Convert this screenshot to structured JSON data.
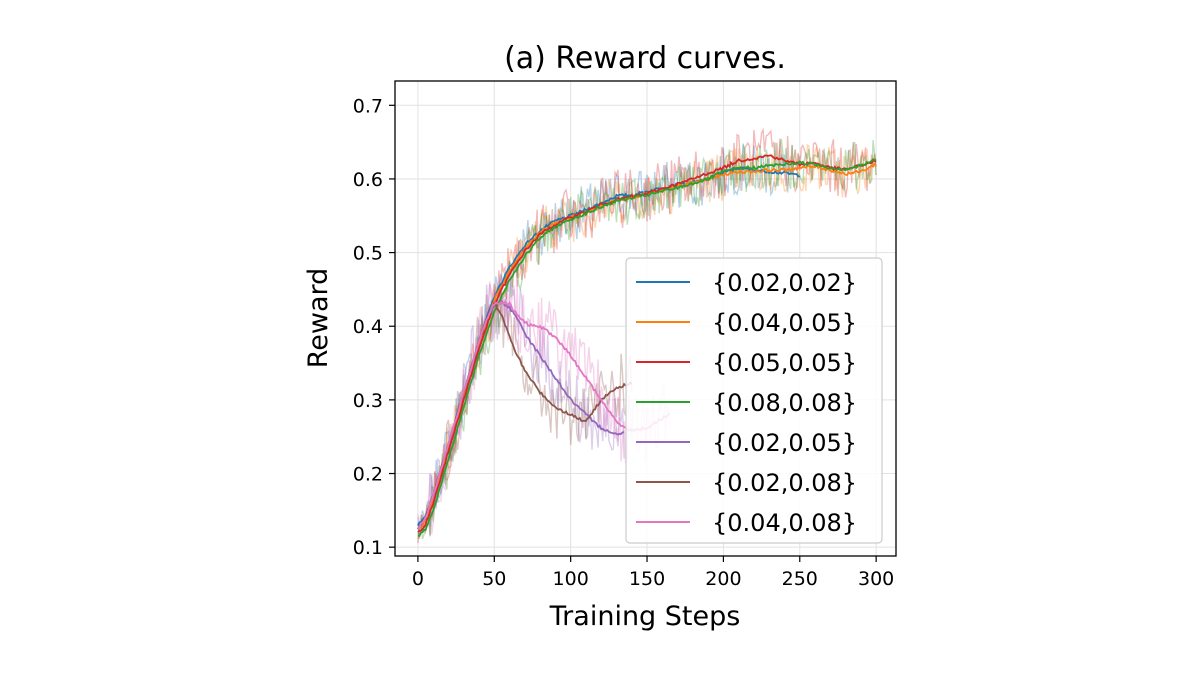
{
  "chart_data": {
    "type": "line",
    "title": "(a) Reward curves.",
    "xlabel": "Training Steps",
    "ylabel": "Reward",
    "xlim": [
      -15,
      313
    ],
    "ylim": [
      0.088,
      0.733
    ],
    "xticks": [
      0,
      50,
      100,
      150,
      200,
      250,
      300
    ],
    "yticks": [
      0.1,
      0.2,
      0.3,
      0.4,
      0.5,
      0.6,
      0.7
    ],
    "grid": true,
    "legend_position": "lower-right",
    "series": [
      {
        "name": "{0.02,0.02}",
        "color": "#1f77b4",
        "x": [
          0,
          5,
          10,
          20,
          30,
          40,
          50,
          60,
          70,
          80,
          90,
          100,
          110,
          120,
          130,
          140,
          150,
          160,
          170,
          180,
          190,
          200,
          210,
          220,
          230,
          240,
          250
        ],
        "y": [
          0.13,
          0.14,
          0.17,
          0.24,
          0.31,
          0.38,
          0.44,
          0.48,
          0.51,
          0.53,
          0.543,
          0.55,
          0.558,
          0.567,
          0.577,
          0.578,
          0.583,
          0.588,
          0.592,
          0.595,
          0.6,
          0.608,
          0.615,
          0.612,
          0.61,
          0.608,
          0.605
        ],
        "noise": 0.035
      },
      {
        "name": "{0.04,0.05}",
        "color": "#ff7f0e",
        "x": [
          0,
          5,
          10,
          20,
          30,
          40,
          50,
          60,
          70,
          80,
          90,
          100,
          110,
          120,
          130,
          140,
          150,
          160,
          170,
          180,
          190,
          200,
          210,
          220,
          230,
          240,
          250,
          260,
          270,
          280,
          290,
          300
        ],
        "y": [
          0.125,
          0.135,
          0.165,
          0.235,
          0.305,
          0.375,
          0.435,
          0.475,
          0.505,
          0.528,
          0.54,
          0.548,
          0.555,
          0.563,
          0.572,
          0.575,
          0.58,
          0.585,
          0.59,
          0.595,
          0.6,
          0.606,
          0.61,
          0.61,
          0.612,
          0.612,
          0.615,
          0.617,
          0.612,
          0.607,
          0.61,
          0.62
        ],
        "noise": 0.035
      },
      {
        "name": "{0.05,0.05}",
        "color": "#d62728",
        "x": [
          0,
          5,
          10,
          20,
          30,
          40,
          50,
          60,
          70,
          80,
          90,
          100,
          110,
          120,
          130,
          140,
          150,
          160,
          170,
          180,
          190,
          200,
          210,
          220,
          230,
          240,
          250,
          260,
          270,
          280,
          290,
          300
        ],
        "y": [
          0.12,
          0.13,
          0.16,
          0.23,
          0.3,
          0.37,
          0.43,
          0.47,
          0.502,
          0.525,
          0.538,
          0.548,
          0.556,
          0.565,
          0.572,
          0.576,
          0.58,
          0.587,
          0.593,
          0.6,
          0.608,
          0.615,
          0.625,
          0.628,
          0.632,
          0.625,
          0.62,
          0.622,
          0.615,
          0.613,
          0.618,
          0.625
        ],
        "noise": 0.04
      },
      {
        "name": "{0.08,0.08}",
        "color": "#2ca02c",
        "x": [
          0,
          5,
          10,
          20,
          30,
          40,
          50,
          60,
          70,
          80,
          90,
          100,
          110,
          120,
          130,
          140,
          150,
          160,
          170,
          180,
          190,
          200,
          210,
          220,
          230,
          240,
          250,
          260,
          270,
          280,
          290,
          300
        ],
        "y": [
          0.115,
          0.125,
          0.15,
          0.22,
          0.29,
          0.36,
          0.42,
          0.463,
          0.495,
          0.52,
          0.535,
          0.545,
          0.553,
          0.562,
          0.57,
          0.574,
          0.578,
          0.583,
          0.588,
          0.594,
          0.6,
          0.61,
          0.615,
          0.615,
          0.618,
          0.62,
          0.622,
          0.62,
          0.615,
          0.613,
          0.618,
          0.627
        ],
        "noise": 0.035
      },
      {
        "name": "{0.02,0.05}",
        "color": "#9467bd",
        "x": [
          0,
          5,
          10,
          20,
          30,
          40,
          45,
          50,
          55,
          60,
          65,
          70,
          80,
          90,
          100,
          110,
          115,
          120,
          125,
          130,
          135
        ],
        "y": [
          0.125,
          0.14,
          0.17,
          0.24,
          0.31,
          0.38,
          0.41,
          0.43,
          0.432,
          0.425,
          0.41,
          0.39,
          0.36,
          0.33,
          0.3,
          0.28,
          0.27,
          0.262,
          0.258,
          0.253,
          0.255
        ],
        "noise": 0.05
      },
      {
        "name": "{0.02,0.08}",
        "color": "#8c564b",
        "x": [
          0,
          5,
          10,
          20,
          30,
          40,
          45,
          50,
          55,
          60,
          65,
          70,
          80,
          90,
          100,
          110,
          115,
          120,
          125,
          130,
          135,
          140
        ],
        "y": [
          0.125,
          0.14,
          0.17,
          0.24,
          0.31,
          0.38,
          0.41,
          0.43,
          0.415,
          0.385,
          0.36,
          0.34,
          0.31,
          0.29,
          0.28,
          0.27,
          0.285,
          0.3,
          0.31,
          0.315,
          0.32,
          0.322
        ],
        "noise": 0.045
      },
      {
        "name": "{0.04,0.08}",
        "color": "#e377c2",
        "x": [
          0,
          5,
          10,
          20,
          30,
          40,
          45,
          50,
          55,
          60,
          65,
          70,
          75,
          80,
          90,
          100,
          110,
          120,
          130,
          140,
          150,
          160,
          165
        ],
        "y": [
          0.125,
          0.14,
          0.17,
          0.24,
          0.31,
          0.38,
          0.41,
          0.43,
          0.432,
          0.43,
          0.415,
          0.405,
          0.4,
          0.4,
          0.385,
          0.36,
          0.33,
          0.3,
          0.27,
          0.258,
          0.262,
          0.275,
          0.282
        ],
        "noise": 0.05
      }
    ]
  }
}
